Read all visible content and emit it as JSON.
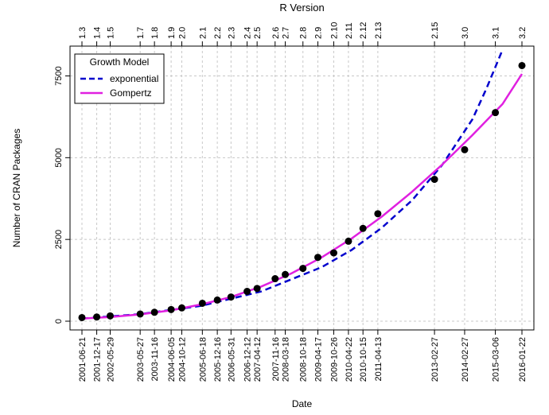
{
  "chart_data": {
    "type": "scatter",
    "top_axis_title": "R Version",
    "xlabel": "Date",
    "ylabel": "Number of CRAN Packages",
    "ylim": [
      0,
      8000
    ],
    "xlim": [
      "2001-06-21",
      "2016-01-22"
    ],
    "yticks": [
      0,
      2500,
      5000,
      7500
    ],
    "grid": true,
    "legend": {
      "title": "Growth Model",
      "position": "top-left",
      "entries": [
        {
          "label": "exponential",
          "color": "#0000CD",
          "style": "dashed"
        },
        {
          "label": "Gompertz",
          "color": "#E020E0",
          "style": "solid"
        }
      ]
    },
    "points": [
      {
        "date": "2001-06-21",
        "version": "1.3",
        "packages": 110
      },
      {
        "date": "2001-12-17",
        "version": "1.4",
        "packages": 129
      },
      {
        "date": "2002-05-29",
        "version": "1.5",
        "packages": 162
      },
      {
        "date": "2003-05-27",
        "version": "1.7",
        "packages": 219
      },
      {
        "date": "2003-11-16",
        "version": "1.8",
        "packages": 273
      },
      {
        "date": "2004-06-05",
        "version": "1.9",
        "packages": 357
      },
      {
        "date": "2004-10-12",
        "version": "2.0",
        "packages": 406
      },
      {
        "date": "2005-06-18",
        "version": "2.1",
        "packages": 548
      },
      {
        "date": "2005-12-16",
        "version": "2.2",
        "packages": 647
      },
      {
        "date": "2006-05-31",
        "version": "2.3",
        "packages": 739
      },
      {
        "date": "2006-12-12",
        "version": "2.4",
        "packages": 911
      },
      {
        "date": "2007-04-12",
        "version": "2.5",
        "packages": 1000
      },
      {
        "date": "2007-11-16",
        "version": "2.6",
        "packages": 1300
      },
      {
        "date": "2008-03-18",
        "version": "2.7",
        "packages": 1427
      },
      {
        "date": "2008-10-18",
        "version": "2.8",
        "packages": 1614
      },
      {
        "date": "2009-04-17",
        "version": "2.9",
        "packages": 1952
      },
      {
        "date": "2009-10-26",
        "version": "2.10",
        "packages": 2088
      },
      {
        "date": "2010-04-22",
        "version": "2.11",
        "packages": 2445
      },
      {
        "date": "2010-10-15",
        "version": "2.12",
        "packages": 2837
      },
      {
        "date": "2011-04-13",
        "version": "2.13",
        "packages": 3286
      },
      {
        "date": "2013-02-27",
        "version": "2.15",
        "packages": 4338
      },
      {
        "date": "2014-02-27",
        "version": "3.0",
        "packages": 5244
      },
      {
        "date": "2015-03-06",
        "version": "3.1",
        "packages": 6378
      },
      {
        "date": "2016-01-22",
        "version": "3.2",
        "packages": 7817
      }
    ],
    "series": [
      {
        "name": "exponential",
        "color": "#0000CD",
        "style": "dashed",
        "x": [
          "2001-06-21",
          "2003-06-01",
          "2005-06-01",
          "2007-06-01",
          "2009-06-01",
          "2010-06-01",
          "2011-06-01",
          "2012-06-01",
          "2013-06-01",
          "2014-06-01",
          "2014-11-15",
          "2015-06-01"
        ],
        "y": [
          80,
          220,
          470,
          910,
          1650,
          2180,
          2860,
          3700,
          4780,
          6170,
          7100,
          8300
        ]
      },
      {
        "name": "Gompertz",
        "color": "#E020E0",
        "style": "solid",
        "x": [
          "2001-06-21",
          "2002-06-01",
          "2003-06-01",
          "2004-06-01",
          "2005-06-01",
          "2006-06-01",
          "2007-06-01",
          "2008-06-01",
          "2009-06-01",
          "2010-06-01",
          "2011-06-01",
          "2012-06-01",
          "2013-06-01",
          "2014-06-01",
          "2015-06-01",
          "2016-01-22"
        ],
        "y": [
          80,
          130,
          210,
          330,
          510,
          740,
          1060,
          1460,
          1950,
          2530,
          3200,
          3960,
          4790,
          5690,
          6640,
          7560
        ]
      }
    ]
  }
}
